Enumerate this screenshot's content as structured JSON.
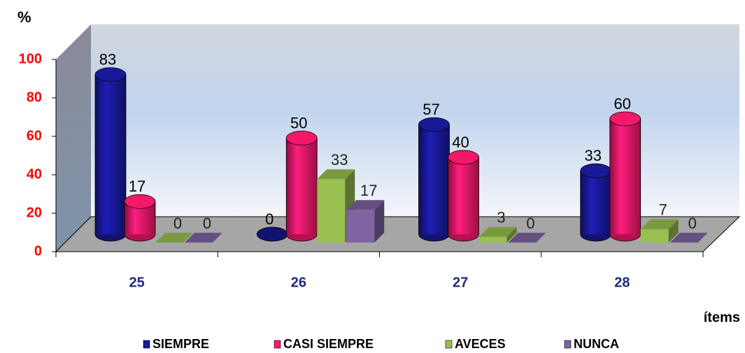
{
  "chart_data": {
    "type": "bar",
    "y_label": "%",
    "x_label": "ítems",
    "categories": [
      "25",
      "26",
      "27",
      "28"
    ],
    "series": [
      {
        "name": "SIEMPRE",
        "color": "#1a1aa0",
        "values": [
          83,
          0,
          57,
          33
        ]
      },
      {
        "name": "CASI SIEMPRE",
        "color": "#ff1a6e",
        "values": [
          17,
          50,
          40,
          60
        ]
      },
      {
        "name": "AVECES",
        "color": "#99c050",
        "values": [
          0,
          33,
          3,
          7
        ]
      },
      {
        "name": "NUNCA",
        "color": "#8064a2",
        "values": [
          0,
          17,
          0,
          0
        ]
      }
    ],
    "ylim": [
      0,
      100
    ],
    "yticks": [
      0,
      20,
      40,
      60,
      80,
      100
    ],
    "grid": false
  }
}
